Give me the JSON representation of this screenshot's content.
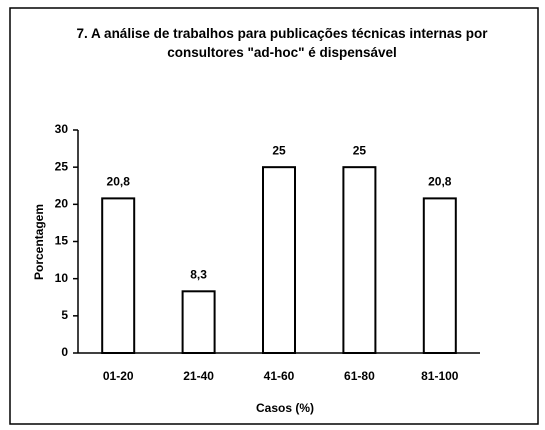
{
  "chart_data": {
    "type": "bar",
    "title": "7. A análise de trabalhos para publicações técnicas internas por consultores \"ad-hoc\" é dispensável",
    "categories": [
      "01-20",
      "21-40",
      "41-60",
      "61-80",
      "81-100"
    ],
    "values": [
      20.8,
      8.3,
      25,
      25,
      20.8
    ],
    "value_labels": [
      "20,8",
      "8,3",
      "25",
      "25",
      "20,8"
    ],
    "color": "#ffffff",
    "xlabel": "Casos (%)",
    "ylabel": "Porcentagem",
    "ylim": [
      0,
      30
    ],
    "yticks": [
      0,
      5,
      10,
      15,
      20,
      25,
      30
    ],
    "grid": false
  }
}
